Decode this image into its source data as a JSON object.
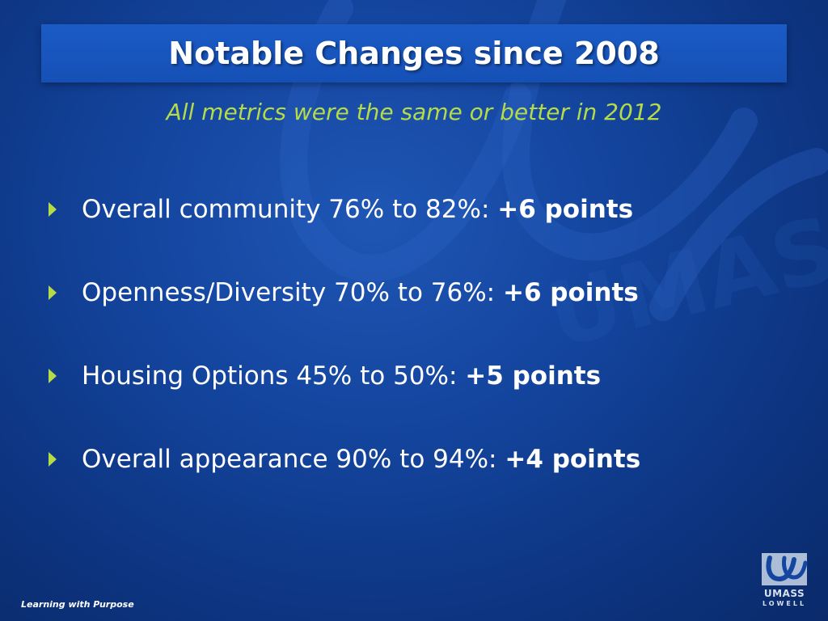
{
  "title": "Notable Changes since 2008",
  "subtitle": "All metrics were the same or better in 2012",
  "bullets": [
    {
      "text": "Overall community 76% to 82%: ",
      "points": "+6 points"
    },
    {
      "text": "Openness/Diversity 70% to 76%: ",
      "points": "+6 points"
    },
    {
      "text": "Housing Options 45% to 50%: ",
      "points": "+5 points"
    },
    {
      "text": "Overall appearance 90% to 94%: ",
      "points": "+4 points"
    }
  ],
  "footer": "Learning with Purpose",
  "logo": {
    "line1": "UMASS",
    "line2": "LOWELL"
  },
  "watermark": {
    "text": "UMASS LOWELL"
  },
  "colors": {
    "background": "#1446a0",
    "title_bar": "#1550b5",
    "subtitle": "#b5dc48",
    "bullet_arrow": "#b5dc48",
    "text": "#ffffff"
  }
}
